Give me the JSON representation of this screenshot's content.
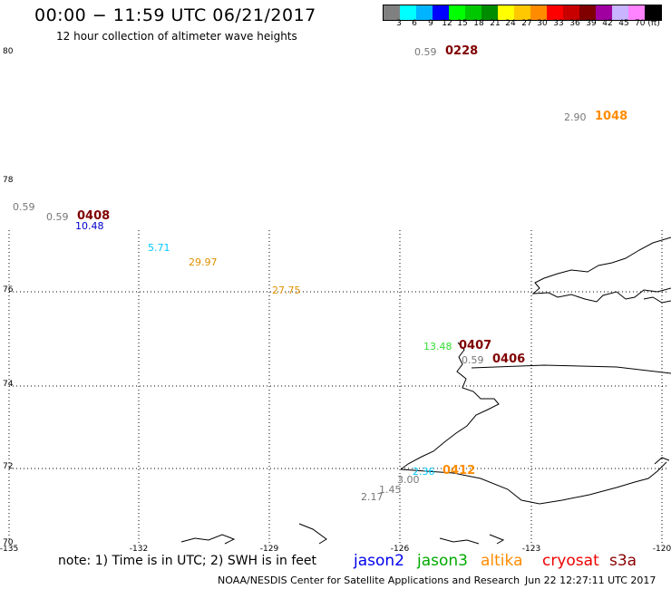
{
  "header": {
    "title": "00:00 − 11:59 UTC 06/21/2017",
    "subtitle": "12 hour collection of altimeter wave heights"
  },
  "scale": {
    "colors": [
      "#808080",
      "#00ffff",
      "#00b4ff",
      "#0000ff",
      "#00ff00",
      "#00c800",
      "#008c00",
      "#ffff00",
      "#ffc800",
      "#ff8c00",
      "#ff0000",
      "#c80000",
      "#800000",
      "#a000a0",
      "#c8b4ff",
      "#ff82ff",
      "#000000"
    ],
    "labels": [
      "3",
      "6",
      "9",
      "12",
      "15",
      "18",
      "21",
      "24",
      "27",
      "30",
      "33",
      "36",
      "39",
      "42",
      "45",
      "70 (ft)"
    ]
  },
  "axes": {
    "lat_labels": [
      "80",
      "78",
      "76",
      "74",
      "72",
      "70"
    ],
    "lon_labels": [
      "-135",
      "-132",
      "-129",
      "-126",
      "-123",
      "-120"
    ]
  },
  "observations": [
    {
      "text": "0.59",
      "color": "#777777"
    },
    {
      "text": "0228",
      "color": "#800000",
      "bold": true
    },
    {
      "text": "2.90",
      "color": "#777777"
    },
    {
      "text": "1048",
      "color": "#ff8c00",
      "bold": true
    },
    {
      "text": "0.59",
      "color": "#777777"
    },
    {
      "text": "0.59",
      "color": "#777777"
    },
    {
      "text": "0408",
      "color": "#800000",
      "bold": true
    },
    {
      "text": "10.48",
      "color": "#0000cc"
    },
    {
      "text": "5.71",
      "color": "#00c8ff"
    },
    {
      "text": "29.97",
      "color": "#e09000"
    },
    {
      "text": "27.75",
      "color": "#e09000"
    },
    {
      "text": "13.48",
      "color": "#33dd33"
    },
    {
      "text": "0407",
      "color": "#800000",
      "bold": true
    },
    {
      "text": "0.59",
      "color": "#777777"
    },
    {
      "text": "0406",
      "color": "#800000",
      "bold": true
    },
    {
      "text": "2.36",
      "color": "#00c8ff"
    },
    {
      "text": "0412",
      "color": "#ff8c00",
      "bold": true
    },
    {
      "text": "3.00",
      "color": "#777777"
    },
    {
      "text": "1.45",
      "color": "#777777"
    },
    {
      "text": "2.17",
      "color": "#777777"
    }
  ],
  "note": "note: 1) Time is in UTC; 2) SWH is in feet",
  "legend": [
    {
      "name": "jason2",
      "color": "#0000ee"
    },
    {
      "name": "jason3",
      "color": "#00aa00"
    },
    {
      "name": "altika",
      "color": "#ff8c00"
    },
    {
      "name": "cryosat",
      "color": "#ee0000"
    },
    {
      "name": "s3a",
      "color": "#880000"
    }
  ],
  "footer": "NOAA/NESDIS Center for Satellite Applications and Research",
  "timestamp": "Jun 22 12:27:11 UTC 2017"
}
